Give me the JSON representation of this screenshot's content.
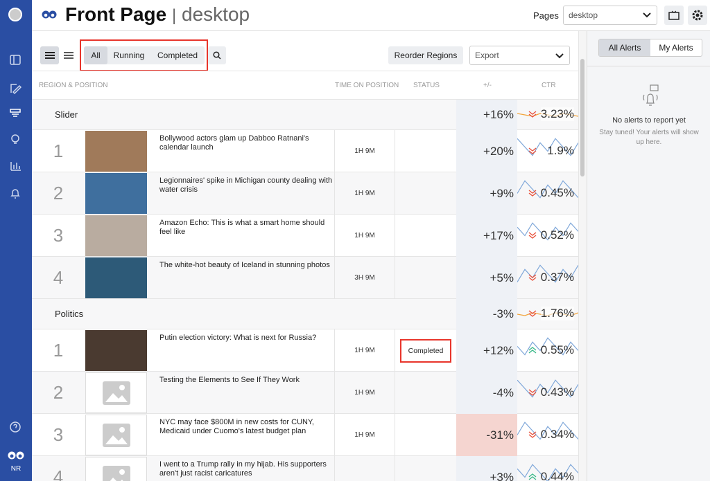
{
  "header": {
    "title": "Front Page",
    "separator": "|",
    "subtitle": "desktop",
    "pages_label": "Pages",
    "pages_select": "desktop"
  },
  "toolbar": {
    "filters": [
      "All",
      "Running",
      "Completed"
    ],
    "active_filter": 0,
    "reorder": "Reorder Regions",
    "export": "Export"
  },
  "columns": [
    "REGION & POSITION",
    "TIME ON POSITION",
    "STATUS",
    "+/-",
    "CTR"
  ],
  "regions": [
    {
      "name": "Slider",
      "change": "+16%",
      "ctr": "3.23%",
      "trend": "down",
      "items": [
        {
          "position": 1,
          "title": "Bollywood actors glam up Dabboo Ratnani's calendar launch",
          "time": "1H 9M",
          "change": "+20%",
          "ctr": "1.9%",
          "trend": "down",
          "thumb": "#a07a5a"
        },
        {
          "position": 2,
          "title": "Legionnaires' spike in Michigan county dealing with water crisis",
          "time": "1H 9M",
          "change": "+9%",
          "ctr": "0.45%",
          "trend": "down",
          "thumb": "#3f6f9e"
        },
        {
          "position": 3,
          "title": "Amazon Echo: This is what a smart home should feel like",
          "time": "1H 9M",
          "change": "+17%",
          "ctr": "0.52%",
          "trend": "down",
          "thumb": "#b9aca0"
        },
        {
          "position": 4,
          "title": "The white-hot beauty of Iceland in stunning photos",
          "time": "3H 9M",
          "change": "+5%",
          "ctr": "0.37%",
          "trend": "down",
          "thumb": "#2d5a78"
        }
      ]
    },
    {
      "name": "Politics",
      "change": "-3%",
      "ctr": "1.76%",
      "trend": "down",
      "items": [
        {
          "position": 1,
          "title": "Putin election victory: What is next for Russia?",
          "time": "1H 9M",
          "status": "Completed",
          "change": "+12%",
          "ctr": "0.55%",
          "trend": "up",
          "thumb": "#4a3a30"
        },
        {
          "position": 2,
          "title": "Testing the Elements to See If They Work",
          "time": "1H 9M",
          "change": "-4%",
          "ctr": "0.43%",
          "trend": "down",
          "thumb": "placeholder"
        },
        {
          "position": 3,
          "title": "NYC may face $800M in new costs for CUNY, Medicaid under Cuomo's latest budget plan",
          "time": "1H 9M",
          "change": "-31%",
          "ctr": "0.34%",
          "trend": "down",
          "thumb": "placeholder",
          "highlight": true
        },
        {
          "position": 4,
          "title": "I went to a Trump rally in my hijab. His supporters aren't just racist caricatures",
          "change": "+3%",
          "ctr": "0.44%",
          "trend": "up",
          "thumb": "placeholder"
        }
      ]
    }
  ],
  "alerts": {
    "tabs": [
      "All Alerts",
      "My Alerts"
    ],
    "active_tab": 0,
    "empty_title": "No alerts to report yet",
    "empty_text": "Stay tuned! Your alerts will show up here."
  },
  "sidebar": {
    "user": "NR"
  }
}
